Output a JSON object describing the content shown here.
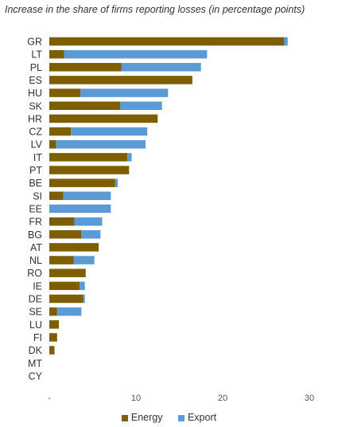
{
  "chart_data": {
    "type": "bar",
    "orientation": "horizontal",
    "stacked": true,
    "title": "Increase in the share of firms reporting losses (in percentage points)",
    "categories": [
      "GR",
      "LT",
      "PL",
      "ES",
      "HU",
      "SK",
      "HR",
      "CZ",
      "LV",
      "IT",
      "PT",
      "BE",
      "SI",
      "EE",
      "FR",
      "BG",
      "AT",
      "NL",
      "RO",
      "IE",
      "DE",
      "SE",
      "LU",
      "FI",
      "DK",
      "MT",
      "CY"
    ],
    "series": [
      {
        "name": "Energy",
        "color": "#7d5e00",
        "values": [
          27.1,
          1.7,
          8.3,
          16.5,
          3.6,
          8.2,
          12.5,
          2.5,
          0.8,
          9.0,
          9.2,
          7.6,
          1.6,
          0.0,
          2.9,
          3.7,
          5.7,
          2.8,
          4.2,
          3.5,
          3.9,
          0.9,
          1.1,
          0.9,
          0.6,
          0.0,
          0.0
        ]
      },
      {
        "name": "Export",
        "color": "#5b9bd5",
        "values": [
          0.4,
          16.5,
          9.2,
          0.0,
          10.1,
          4.8,
          0.0,
          8.8,
          10.3,
          0.5,
          0.0,
          0.3,
          5.5,
          7.1,
          3.2,
          2.2,
          0.0,
          2.4,
          0.0,
          0.6,
          0.2,
          2.8,
          0.0,
          0.0,
          0.0,
          0.0,
          0.0
        ]
      }
    ],
    "x_ticks": [
      "-",
      "10",
      "20",
      "30"
    ],
    "xlim": [
      0,
      30
    ],
    "grid": false,
    "legend_position": "bottom"
  }
}
